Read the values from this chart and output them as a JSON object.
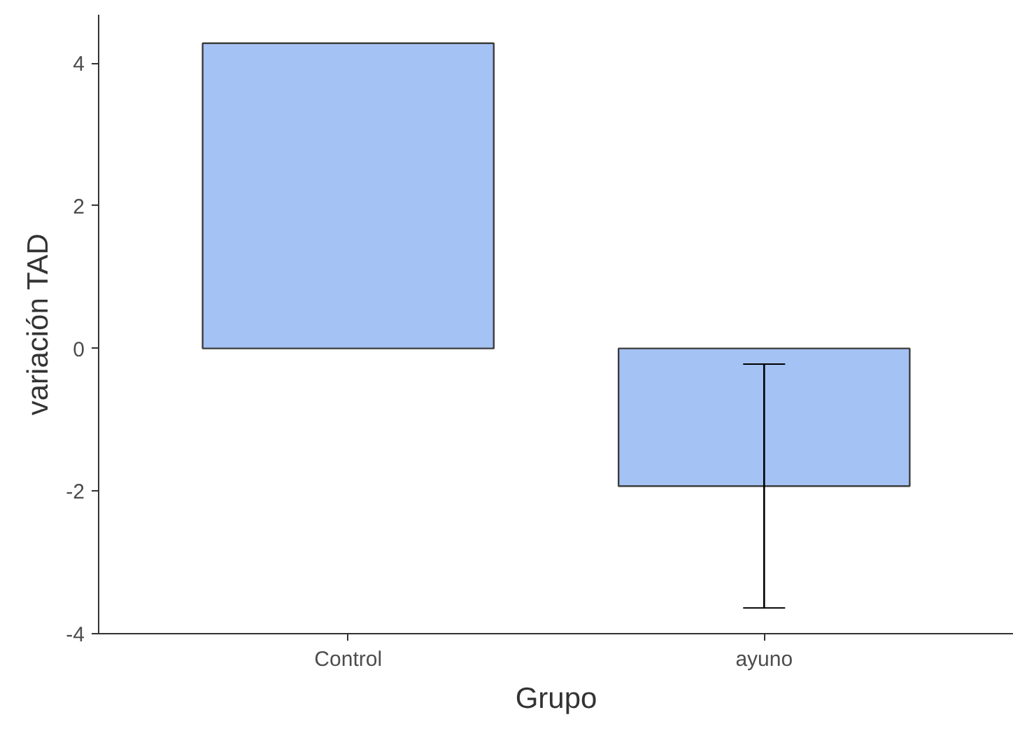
{
  "chart_data": {
    "type": "bar",
    "xlabel": "Grupo",
    "ylabel": "variación TAD",
    "categories": [
      "Control",
      "ayuno"
    ],
    "values": [
      4.28,
      -1.93
    ],
    "errors": [
      null,
      [
        -3.64,
        -0.22
      ]
    ],
    "color": "#a4c2f4",
    "ylim": [
      -4,
      4.68
    ],
    "yticks": [
      -4,
      -2,
      0,
      2,
      4
    ],
    "grid": false
  }
}
